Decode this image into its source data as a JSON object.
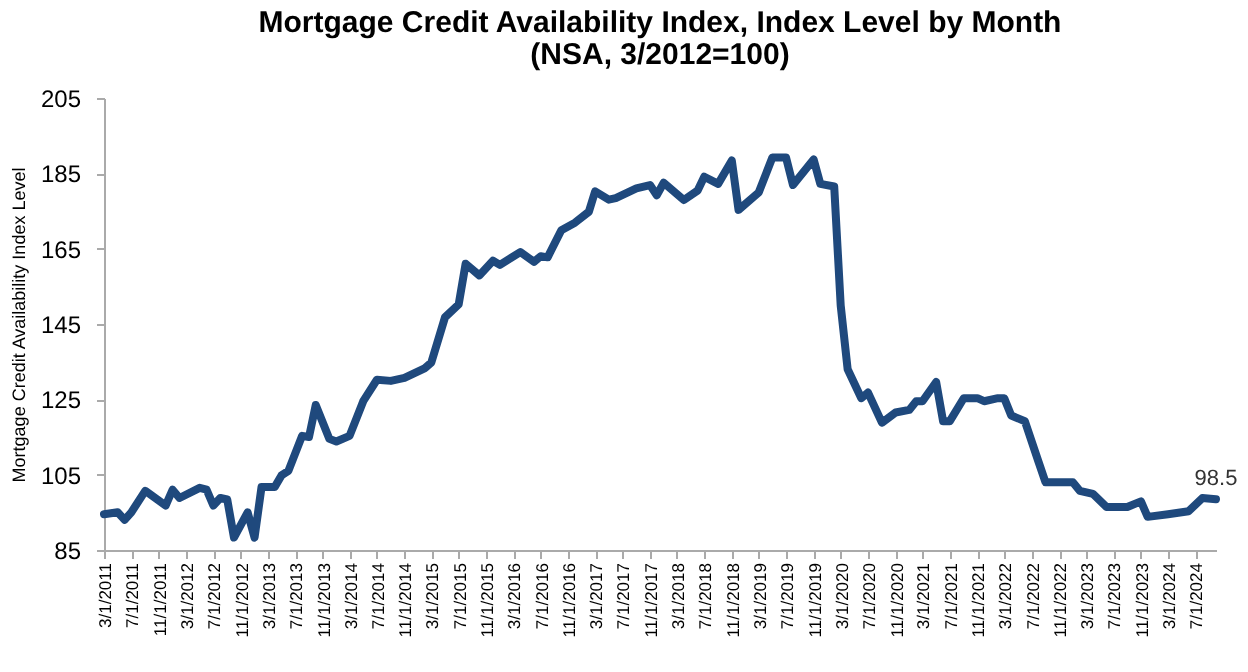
{
  "chart_data": {
    "type": "line",
    "title": "Mortgage Credit Availability Index, Index Level by Month",
    "subtitle": "(NSA, 3/2012=100)",
    "ylabel": "Mortgage Credit Availability Index Level",
    "x": [
      "2011-03",
      "2011-05",
      "2011-06",
      "2011-07",
      "2011-09",
      "2011-12",
      "2012-01",
      "2012-02",
      "2012-05",
      "2012-06",
      "2012-07",
      "2012-08",
      "2012-09",
      "2012-10",
      "2012-12",
      "2013-01",
      "2013-02",
      "2013-04",
      "2013-05",
      "2013-06",
      "2013-08",
      "2013-09",
      "2013-10",
      "2013-12",
      "2014-01",
      "2014-03",
      "2014-05",
      "2014-07",
      "2014-09",
      "2014-11",
      "2015-02",
      "2015-03",
      "2015-05",
      "2015-07",
      "2015-08",
      "2015-10",
      "2015-12",
      "2016-01",
      "2016-04",
      "2016-06",
      "2016-07",
      "2016-08",
      "2016-10",
      "2016-12",
      "2017-02",
      "2017-03",
      "2017-05",
      "2017-06",
      "2017-09",
      "2017-11",
      "2017-12",
      "2018-01",
      "2018-04",
      "2018-06",
      "2018-07",
      "2018-09",
      "2018-11",
      "2018-12",
      "2019-03",
      "2019-05",
      "2019-07",
      "2019-08",
      "2019-11",
      "2019-12",
      "2020-02",
      "2020-03",
      "2020-04",
      "2020-06",
      "2020-07",
      "2020-09",
      "2020-11",
      "2021-01",
      "2021-02",
      "2021-03",
      "2021-05",
      "2021-06",
      "2021-07",
      "2021-09",
      "2021-11",
      "2021-12",
      "2022-02",
      "2022-03",
      "2022-04",
      "2022-06",
      "2022-08",
      "2022-09",
      "2022-11",
      "2023-01",
      "2023-02",
      "2023-04",
      "2023-06",
      "2023-09",
      "2023-11",
      "2023-12",
      "2024-03",
      "2024-06",
      "2024-08",
      "2024-10"
    ],
    "series": [
      {
        "color": "#1f497d",
        "values": [
          94.5,
          95,
          93,
          95,
          100.7,
          96.8,
          101,
          98.8,
          101.5,
          101,
          96.8,
          98.8,
          98.4,
          88.3,
          95,
          88.3,
          101.7,
          101.7,
          104.8,
          106,
          115.3,
          115,
          123.5,
          114.5,
          113.8,
          115.3,
          124.5,
          130.2,
          129.9,
          130.7,
          133.3,
          134.8,
          146.8,
          150.2,
          161,
          157.9,
          161.8,
          160.7,
          164.1,
          161.5,
          163,
          162.7,
          169.9,
          171.9,
          174.8,
          180.2,
          178,
          178.4,
          181,
          181.9,
          179.2,
          182.5,
          177.9,
          180.4,
          184.1,
          182.2,
          188.4,
          175.3,
          179.9,
          189.2,
          189.2,
          181.9,
          188.7,
          182.2,
          181.5,
          149.9,
          133,
          125.3,
          126.8,
          118.8,
          121.5,
          122.2,
          124.5,
          124.5,
          129.6,
          119.2,
          119.2,
          125.3,
          125.3,
          124.5,
          125.3,
          125.3,
          120.7,
          119.2,
          108.4,
          103,
          103,
          103,
          100.7,
          99.9,
          96.4,
          96.4,
          97.9,
          93.8,
          94.5,
          95.3,
          98.8,
          98.5
        ]
      }
    ],
    "annotations": [
      {
        "text": "98.5",
        "x": "2024-10",
        "y": 98.5
      }
    ],
    "xlim": [
      "2011-03",
      "2024-10"
    ],
    "xticks": [
      {
        "value": "2011-03",
        "label": "3/1/2011"
      },
      {
        "value": "2011-07",
        "label": "7/1/2011"
      },
      {
        "value": "2011-11",
        "label": "11/1/2011"
      },
      {
        "value": "2012-03",
        "label": "3/1/2012"
      },
      {
        "value": "2012-07",
        "label": "7/1/2012"
      },
      {
        "value": "2012-11",
        "label": "11/1/2012"
      },
      {
        "value": "2013-03",
        "label": "3/1/2013"
      },
      {
        "value": "2013-07",
        "label": "7/1/2013"
      },
      {
        "value": "2013-11",
        "label": "11/1/2013"
      },
      {
        "value": "2014-03",
        "label": "3/1/2014"
      },
      {
        "value": "2014-07",
        "label": "7/1/2014"
      },
      {
        "value": "2014-11",
        "label": "11/1/2014"
      },
      {
        "value": "2015-03",
        "label": "3/1/2015"
      },
      {
        "value": "2015-07",
        "label": "7/1/2015"
      },
      {
        "value": "2015-11",
        "label": "11/1/2015"
      },
      {
        "value": "2016-03",
        "label": "3/1/2016"
      },
      {
        "value": "2016-07",
        "label": "7/1/2016"
      },
      {
        "value": "2016-11",
        "label": "11/1/2016"
      },
      {
        "value": "2017-03",
        "label": "3/1/2017"
      },
      {
        "value": "2017-07",
        "label": "7/1/2017"
      },
      {
        "value": "2017-11",
        "label": "11/1/2017"
      },
      {
        "value": "2018-03",
        "label": "3/1/2018"
      },
      {
        "value": "2018-07",
        "label": "7/1/2018"
      },
      {
        "value": "2018-11",
        "label": "11/1/2018"
      },
      {
        "value": "2019-03",
        "label": "3/1/2019"
      },
      {
        "value": "2019-07",
        "label": "7/1/2019"
      },
      {
        "value": "2019-11",
        "label": "11/1/2019"
      },
      {
        "value": "2020-03",
        "label": "3/1/2020"
      },
      {
        "value": "2020-07",
        "label": "7/1/2020"
      },
      {
        "value": "2020-11",
        "label": "11/1/2020"
      },
      {
        "value": "2021-03",
        "label": "3/1/2021"
      },
      {
        "value": "2021-07",
        "label": "7/1/2021"
      },
      {
        "value": "2021-11",
        "label": "11/1/2021"
      },
      {
        "value": "2022-03",
        "label": "3/1/2022"
      },
      {
        "value": "2022-07",
        "label": "7/1/2022"
      },
      {
        "value": "2022-11",
        "label": "11/1/2022"
      },
      {
        "value": "2023-03",
        "label": "3/1/2023"
      },
      {
        "value": "2023-07",
        "label": "7/1/2023"
      },
      {
        "value": "2023-11",
        "label": "11/1/2023"
      },
      {
        "value": "2024-03",
        "label": "3/1/2024"
      },
      {
        "value": "2024-07",
        "label": "7/1/2024"
      }
    ],
    "ylim": [
      85,
      205
    ],
    "yticks": [
      85,
      105,
      125,
      145,
      165,
      185,
      205
    ],
    "grid": false,
    "marker": "none",
    "line_style": "solid"
  }
}
